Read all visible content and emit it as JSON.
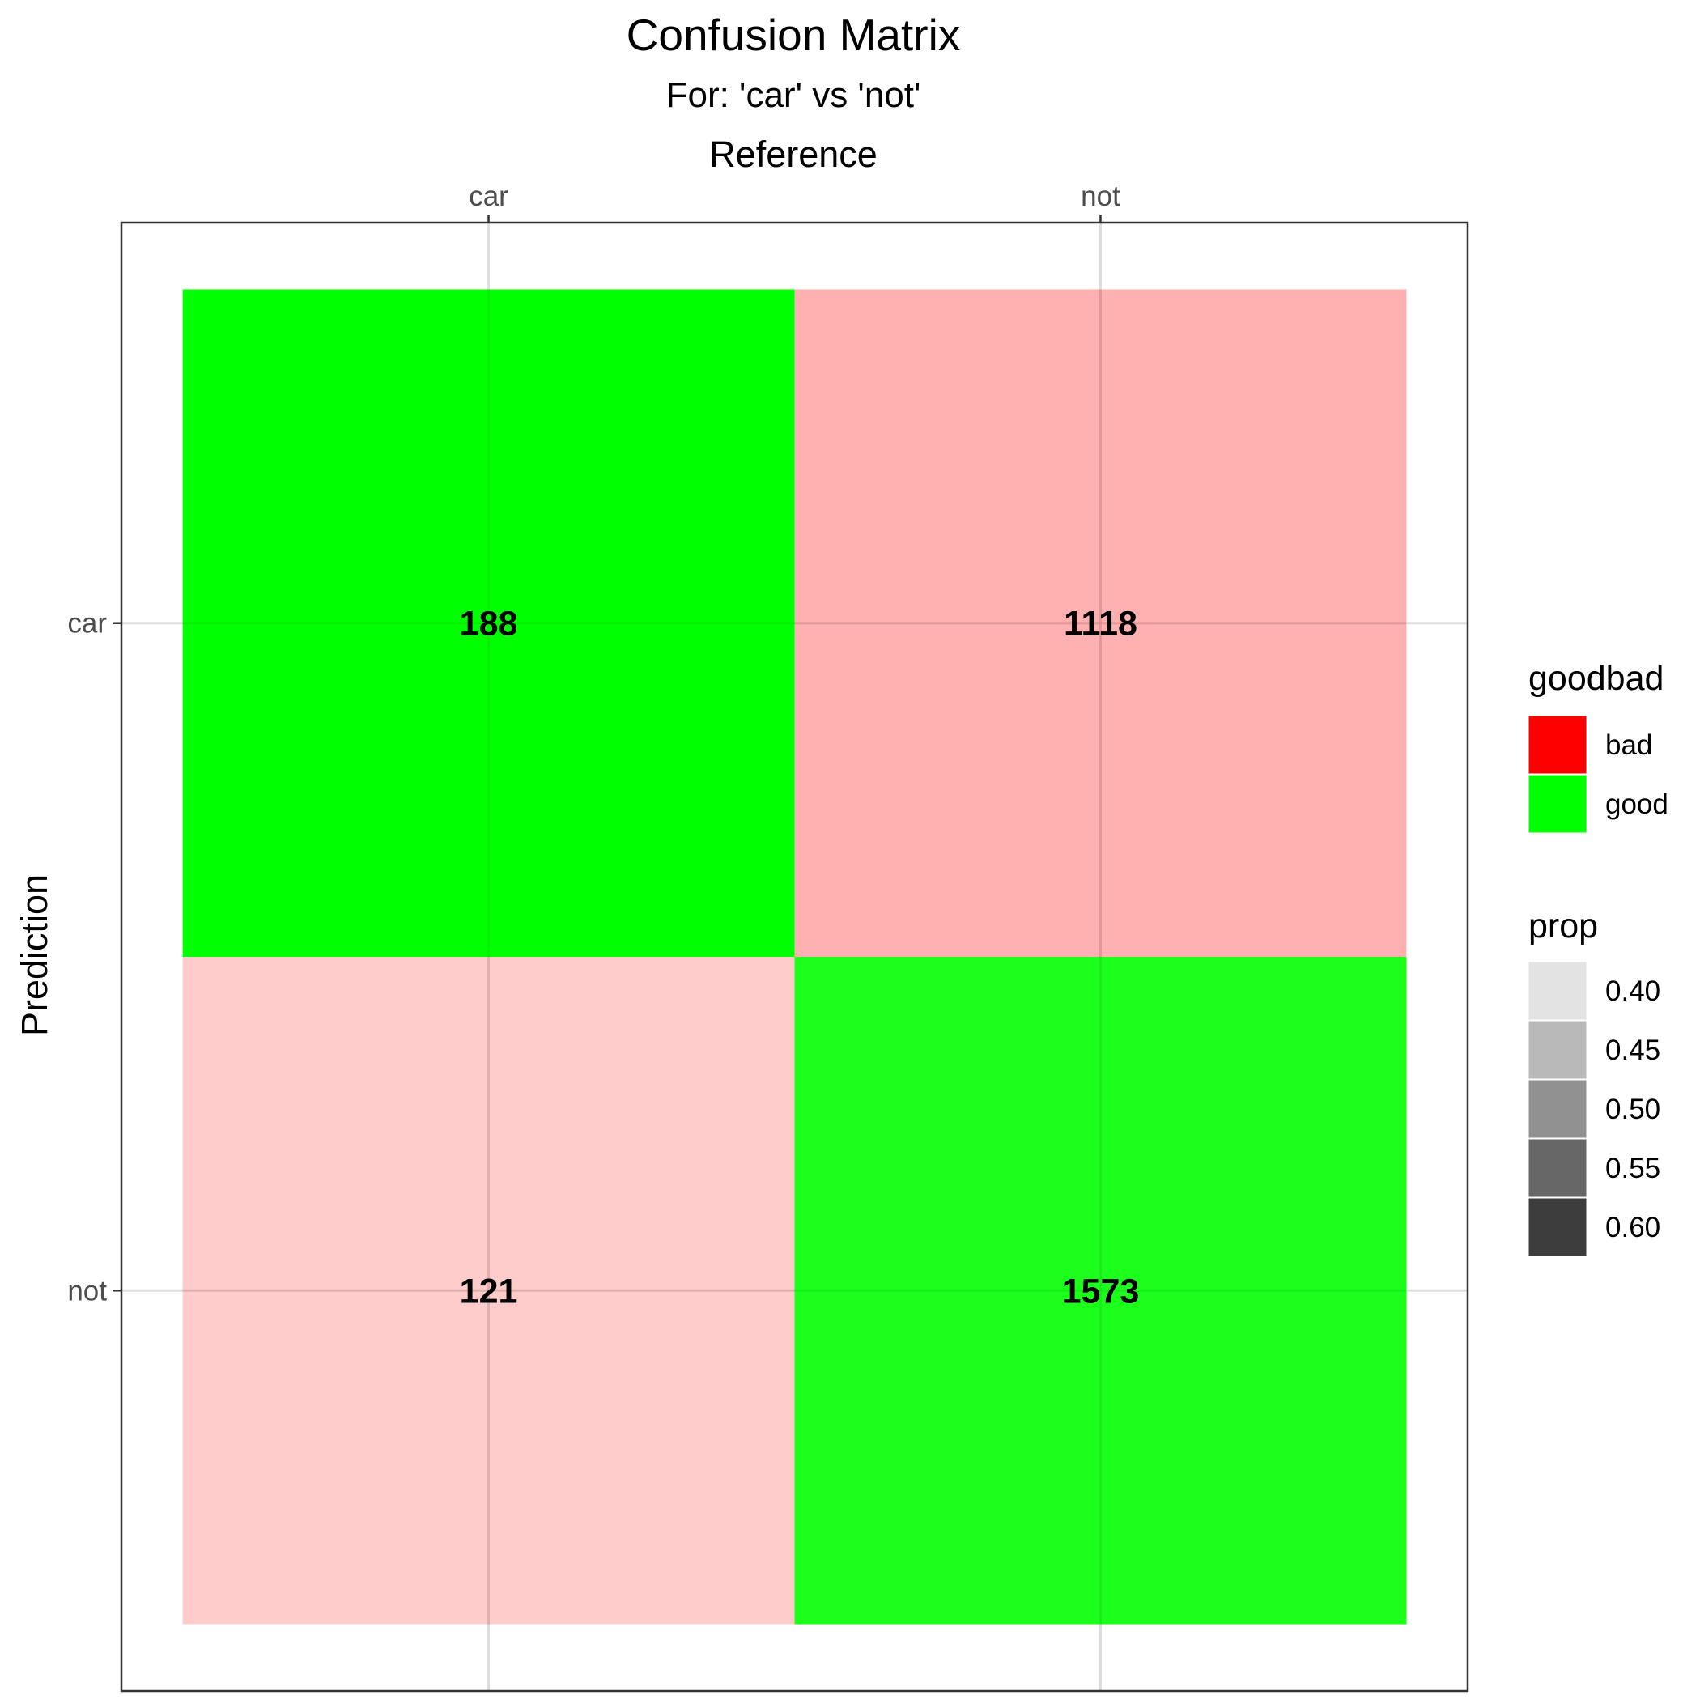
{
  "chart_data": {
    "type": "heatmap",
    "title": "Confusion Matrix",
    "subtitle": "For: 'car' vs 'not'",
    "xlabel": "Reference",
    "ylabel": "Prediction",
    "x_categories": [
      "car",
      "not"
    ],
    "y_categories": [
      "car",
      "not"
    ],
    "cells": [
      {
        "reference": "car",
        "prediction": "car",
        "count": 188,
        "goodbad": "good",
        "prop": 0.61
      },
      {
        "reference": "not",
        "prediction": "car",
        "count": 1118,
        "goodbad": "bad",
        "prop": 0.42
      },
      {
        "reference": "car",
        "prediction": "not",
        "count": 121,
        "goodbad": "bad",
        "prop": 0.39
      },
      {
        "reference": "not",
        "prediction": "not",
        "count": 1573,
        "goodbad": "good",
        "prop": 0.58
      }
    ],
    "legend_fill": {
      "title": "goodbad",
      "items": [
        {
          "label": "bad",
          "color": "#ff0000"
        },
        {
          "label": "good",
          "color": "#00ff00"
        }
      ]
    },
    "legend_alpha": {
      "title": "prop",
      "items": [
        {
          "label": "0.40",
          "value": 0.4,
          "color": "#e3e3e3"
        },
        {
          "label": "0.45",
          "value": 0.45,
          "color": "#b9b9b9"
        },
        {
          "label": "0.50",
          "value": 0.5,
          "color": "#919191"
        },
        {
          "label": "0.55",
          "value": 0.55,
          "color": "#676767"
        },
        {
          "label": "0.60",
          "value": 0.6,
          "color": "#3d3d3d"
        }
      ]
    },
    "grid": true,
    "legend_position": "right",
    "x_axis_position": "top"
  }
}
